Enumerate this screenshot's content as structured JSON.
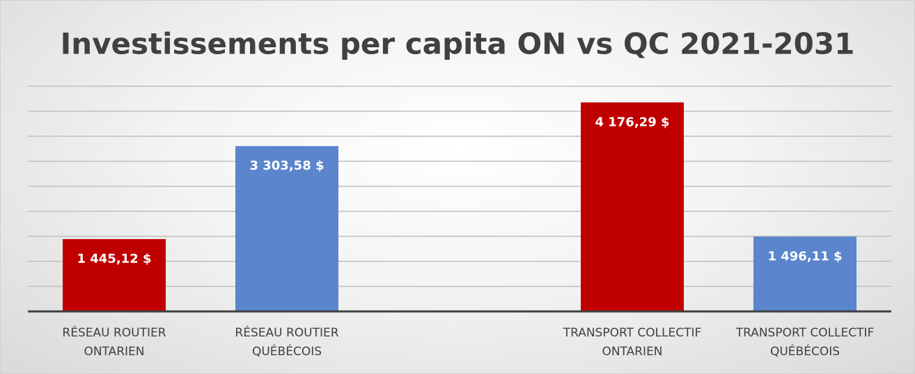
{
  "chart_data": {
    "type": "bar",
    "title": "Investissements per capita ON vs QC 2021-2031",
    "categories": [
      "RÉSEAU ROUTIER ONTARIEN",
      "RÉSEAU ROUTIER QUÉBÉCOIS",
      null,
      "TRANSPORT COLLECTIF ONTARIEN",
      "TRANSPORT COLLECTIF QUÉBÉCOIS"
    ],
    "values": [
      1445.12,
      3303.58,
      null,
      4176.29,
      1496.11
    ],
    "value_labels": [
      "1 445,12 $",
      "3 303,58 $",
      null,
      "4 176,29 $",
      "1 496,11 $"
    ],
    "colors": [
      "#c00000",
      "#5b85cc",
      null,
      "#c00000",
      "#5b85cc"
    ],
    "ylim": [
      0,
      4500
    ],
    "yticks": [
      0,
      500,
      1000,
      1500,
      2000,
      2500,
      3000,
      3500,
      4000,
      4500
    ],
    "grid": true
  }
}
